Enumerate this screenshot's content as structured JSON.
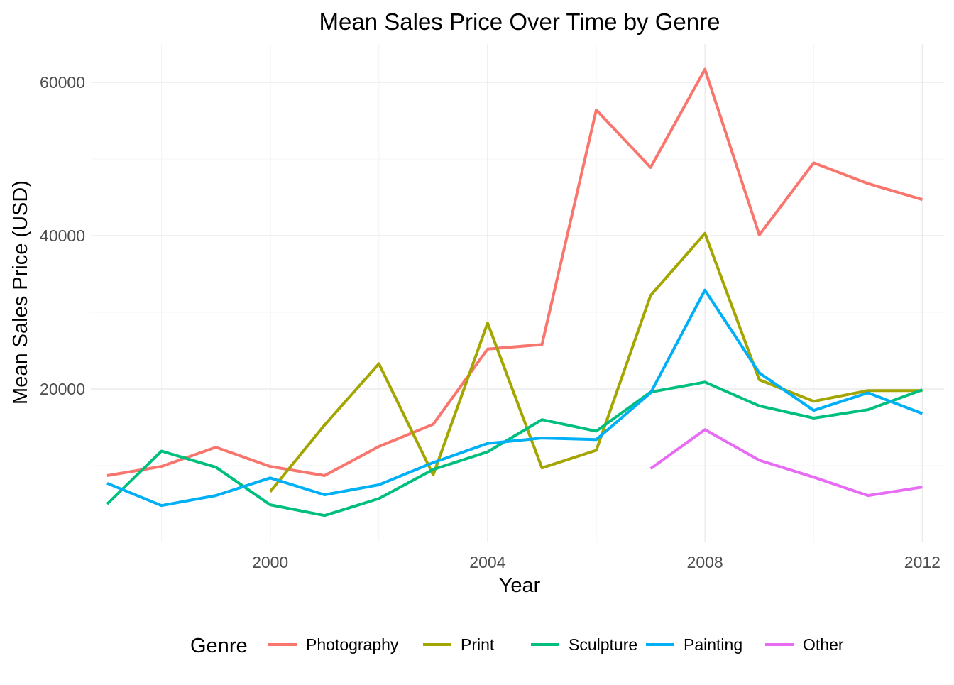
{
  "chart_data": {
    "type": "line",
    "title": "Mean Sales Price Over Time by Genre",
    "xlabel": "Year",
    "ylabel": "Mean Sales Price (USD)",
    "xlim": [
      1996.7,
      2012.4
    ],
    "ylim": [
      0,
      65000
    ],
    "x_ticks": [
      2000,
      2004,
      2008,
      2012
    ],
    "x_minor_ticks": [
      1998,
      2002,
      2006,
      2010
    ],
    "y_ticks": [
      20000,
      40000,
      60000
    ],
    "y_minor_ticks": [
      10000,
      30000,
      50000
    ],
    "x_tick_labels": [
      "2000",
      "2004",
      "2008",
      "2012"
    ],
    "y_tick_labels": [
      "20000",
      "40000",
      "60000"
    ],
    "grid": true,
    "legend": {
      "title": "Genre",
      "position": "bottom"
    },
    "series": [
      {
        "name": "Photography",
        "color": "#F8766D",
        "points": [
          [
            1997,
            8700
          ],
          [
            1998,
            9900
          ],
          [
            1999,
            12400
          ],
          [
            2000,
            9900
          ],
          [
            2001,
            8700
          ],
          [
            2002,
            12500
          ],
          [
            2003,
            15400
          ],
          [
            2004,
            25200
          ],
          [
            2005,
            25800
          ],
          [
            2006,
            56400
          ],
          [
            2007,
            48900
          ],
          [
            2008,
            61700
          ],
          [
            2009,
            40100
          ],
          [
            2010,
            49500
          ],
          [
            2011,
            46800
          ],
          [
            2012,
            44700
          ]
        ]
      },
      {
        "name": "Print",
        "color": "#A3A500",
        "points": [
          [
            2000,
            6600
          ],
          [
            2001,
            15300
          ],
          [
            2002,
            23300
          ],
          [
            2003,
            8800
          ],
          [
            2004,
            28600
          ],
          [
            2005,
            9700
          ],
          [
            2006,
            12000
          ],
          [
            2007,
            32200
          ],
          [
            2008,
            40300
          ],
          [
            2009,
            21200
          ],
          [
            2010,
            18400
          ],
          [
            2011,
            19800
          ],
          [
            2012,
            19800
          ]
        ]
      },
      {
        "name": "Sculpture",
        "color": "#00BF7D",
        "points": [
          [
            1997,
            5000
          ],
          [
            1998,
            11900
          ],
          [
            1999,
            9800
          ],
          [
            2000,
            4900
          ],
          [
            2001,
            3500
          ],
          [
            2002,
            5700
          ],
          [
            2003,
            9500
          ],
          [
            2004,
            11800
          ],
          [
            2005,
            16000
          ],
          [
            2006,
            14500
          ],
          [
            2007,
            19600
          ],
          [
            2008,
            20900
          ],
          [
            2009,
            17800
          ],
          [
            2010,
            16200
          ],
          [
            2011,
            17300
          ],
          [
            2012,
            19900
          ]
        ]
      },
      {
        "name": "Painting",
        "color": "#00B0F6",
        "points": [
          [
            1997,
            7700
          ],
          [
            1998,
            4800
          ],
          [
            1999,
            6100
          ],
          [
            2000,
            8400
          ],
          [
            2001,
            6200
          ],
          [
            2002,
            7500
          ],
          [
            2003,
            10400
          ],
          [
            2004,
            12900
          ],
          [
            2005,
            13600
          ],
          [
            2006,
            13400
          ],
          [
            2007,
            19500
          ],
          [
            2008,
            32900
          ],
          [
            2009,
            22100
          ],
          [
            2010,
            17200
          ],
          [
            2011,
            19500
          ],
          [
            2012,
            16800
          ]
        ]
      },
      {
        "name": "Other",
        "color": "#E76BF3",
        "points": [
          [
            2007,
            9600
          ],
          [
            2008,
            14700
          ],
          [
            2009,
            10700
          ],
          [
            2010,
            8500
          ],
          [
            2011,
            6100
          ],
          [
            2012,
            7200
          ]
        ]
      }
    ]
  }
}
